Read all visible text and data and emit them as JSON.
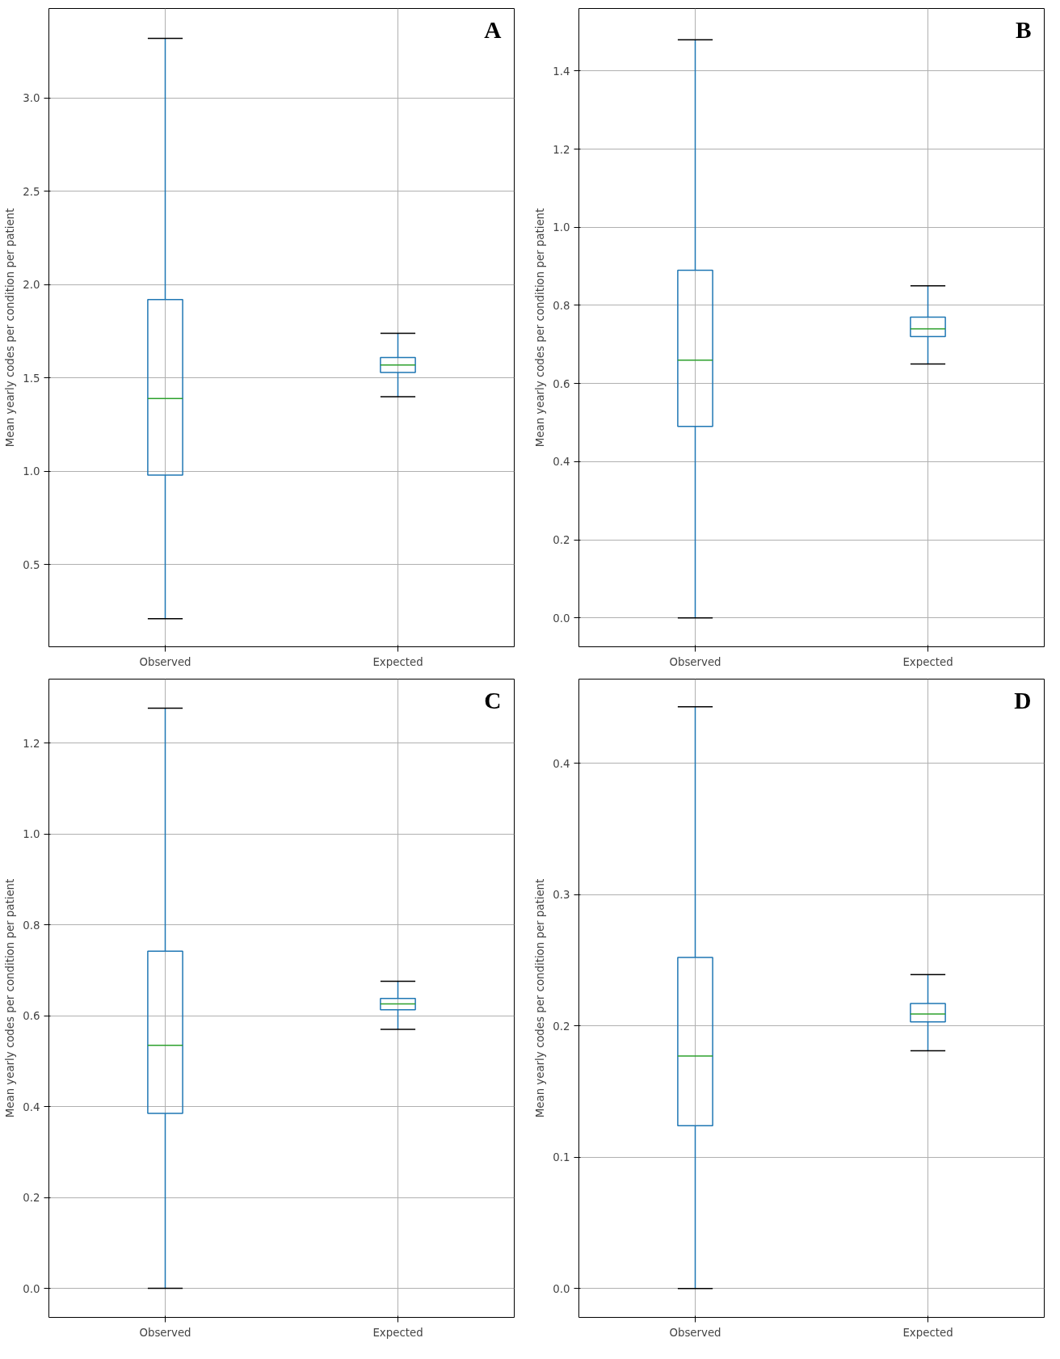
{
  "chart_data": [
    {
      "type": "box",
      "categories": [
        "Observed",
        "Expected"
      ],
      "ylabel": "Mean yearly codes per condition per patient",
      "annotations": [
        "A"
      ],
      "grid": true,
      "color": "#1f77b4",
      "boxes": [
        {
          "low": 0.21,
          "q1": 0.98,
          "median": 1.39,
          "q3": 1.92,
          "high": 3.32
        },
        {
          "low": 1.4,
          "q1": 1.53,
          "median": 1.57,
          "q3": 1.61,
          "high": 1.74
        }
      ],
      "ylim": [
        0.06,
        3.48
      ],
      "yticks": [
        {
          "value": 0.5,
          "label": "0.5"
        },
        {
          "value": 1.0,
          "label": "1.0"
        },
        {
          "value": 1.5,
          "label": "1.5"
        },
        {
          "value": 2.0,
          "label": "2.0"
        },
        {
          "value": 2.5,
          "label": "2.5"
        },
        {
          "value": 3.0,
          "label": "3.0"
        }
      ]
    },
    {
      "type": "box",
      "categories": [
        "Observed",
        "Expected"
      ],
      "ylabel": "Mean yearly codes per condition per patient",
      "annotations": [
        "B"
      ],
      "grid": true,
      "color": "#1f77b4",
      "boxes": [
        {
          "low": 0.0,
          "q1": 0.49,
          "median": 0.66,
          "q3": 0.89,
          "high": 1.48
        },
        {
          "low": 0.65,
          "q1": 0.72,
          "median": 0.74,
          "q3": 0.77,
          "high": 0.85
        }
      ],
      "ylim": [
        -0.074,
        1.56
      ],
      "yticks": [
        {
          "value": 0.0,
          "label": "0.0"
        },
        {
          "value": 0.2,
          "label": "0.2"
        },
        {
          "value": 0.4,
          "label": "0.4"
        },
        {
          "value": 0.6,
          "label": "0.6"
        },
        {
          "value": 0.8,
          "label": "0.8"
        },
        {
          "value": 1.0,
          "label": "1.0"
        },
        {
          "value": 1.2,
          "label": "1.2"
        },
        {
          "value": 1.4,
          "label": "1.4"
        }
      ]
    },
    {
      "type": "box",
      "categories": [
        "Observed",
        "Expected"
      ],
      "ylabel": "Mean yearly codes per condition per patient",
      "annotations": [
        "C"
      ],
      "grid": true,
      "color": "#1f77b4",
      "boxes": [
        {
          "low": 0.0,
          "q1": 0.385,
          "median": 0.535,
          "q3": 0.742,
          "high": 1.277
        },
        {
          "low": 0.57,
          "q1": 0.613,
          "median": 0.626,
          "q3": 0.638,
          "high": 0.676
        }
      ],
      "ylim": [
        -0.064,
        1.341
      ],
      "yticks": [
        {
          "value": 0.0,
          "label": "0.0"
        },
        {
          "value": 0.2,
          "label": "0.2"
        },
        {
          "value": 0.4,
          "label": "0.4"
        },
        {
          "value": 0.6,
          "label": "0.6"
        },
        {
          "value": 0.8,
          "label": "0.8"
        },
        {
          "value": 1.0,
          "label": "1.0"
        },
        {
          "value": 1.2,
          "label": "1.2"
        }
      ]
    },
    {
      "type": "box",
      "categories": [
        "Observed",
        "Expected"
      ],
      "ylabel": "Mean yearly codes per condition per patient",
      "annotations": [
        "D"
      ],
      "grid": true,
      "color": "#1f77b4",
      "boxes": [
        {
          "low": 0.0,
          "q1": 0.124,
          "median": 0.177,
          "q3": 0.252,
          "high": 0.443
        },
        {
          "low": 0.181,
          "q1": 0.203,
          "median": 0.209,
          "q3": 0.217,
          "high": 0.239
        }
      ],
      "ylim": [
        -0.022,
        0.464
      ],
      "yticks": [
        {
          "value": 0.0,
          "label": "0.0"
        },
        {
          "value": 0.1,
          "label": "0.1"
        },
        {
          "value": 0.2,
          "label": "0.2"
        },
        {
          "value": 0.3,
          "label": "0.3"
        },
        {
          "value": 0.4,
          "label": "0.4"
        }
      ]
    }
  ]
}
